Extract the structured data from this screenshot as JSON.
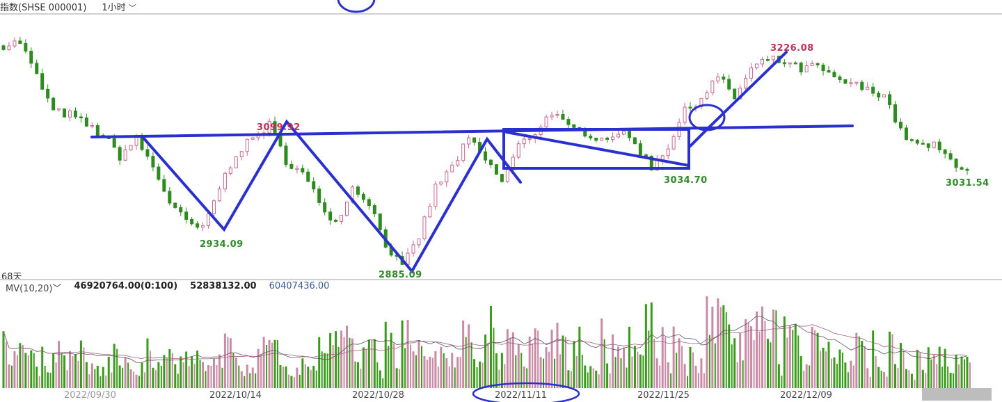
{
  "header": {
    "title": "指数(SHSE 000001)",
    "period": "1小时",
    "period_chevron": "chevron-down-icon"
  },
  "period_days": "68天",
  "mv": {
    "label": "MV(10,20)",
    "value1": "46920764.00(0:100)",
    "value2": "52838132.00",
    "value3": "60407436.00"
  },
  "price_labels": [
    {
      "text": "3099.92",
      "kind": "high"
    },
    {
      "text": "2934.09",
      "kind": "low"
    },
    {
      "text": "2885.09",
      "kind": "low"
    },
    {
      "text": "3034.70",
      "kind": "low"
    },
    {
      "text": "3226.08",
      "kind": "high"
    },
    {
      "text": "3031.54",
      "kind": "low"
    }
  ],
  "colors": {
    "up": "#c9678f",
    "down": "#2e8b1f",
    "annotation": "#2a2fd0",
    "volume_up": "#c98aa6",
    "volume_down": "#3a9a1a"
  },
  "chart_data": {
    "type": "candlestick",
    "interval": "1小时",
    "x_ticks": [
      "2022/09/30",
      "2022/10/14",
      "2022/10/28",
      "2022/11/11",
      "2022/11/25",
      "2022/12/09"
    ],
    "ylim": [
      2860,
      3250
    ],
    "key_closes": [
      3237,
      3242,
      3188,
      3133,
      3128,
      3112,
      3095,
      3063,
      3090,
      3046,
      2992,
      2959,
      2948,
      3014,
      3068,
      3090,
      3112,
      3057,
      3035,
      2992,
      2959,
      3014,
      2992,
      2926,
      2888,
      2937,
      3014,
      3046,
      3090,
      3057,
      3024,
      3079,
      3101,
      3133,
      3106,
      3101,
      3090,
      3101,
      3084,
      3046,
      3079,
      3133,
      3155,
      3188,
      3155,
      3199,
      3215,
      3210,
      3199,
      3204,
      3182,
      3177,
      3166,
      3161,
      3101,
      3079,
      3079,
      3057,
      3041
    ],
    "key_volumes_millions": [
      60,
      55,
      50,
      58,
      48,
      52,
      45,
      50,
      47,
      55,
      60,
      50,
      48,
      62,
      55,
      58,
      52,
      50,
      48,
      55,
      60,
      65,
      58,
      70,
      75,
      60,
      55,
      62,
      70,
      80,
      95,
      85,
      75,
      70,
      68,
      65,
      72,
      70,
      75,
      90,
      85,
      80,
      95,
      100,
      90,
      85,
      80,
      78,
      75,
      70,
      68,
      65,
      60,
      62,
      58,
      55,
      50,
      48,
      45
    ],
    "volume_ylim": [
      0,
      140
    ],
    "ma_volume": {
      "name": "MV(10,20)"
    }
  }
}
